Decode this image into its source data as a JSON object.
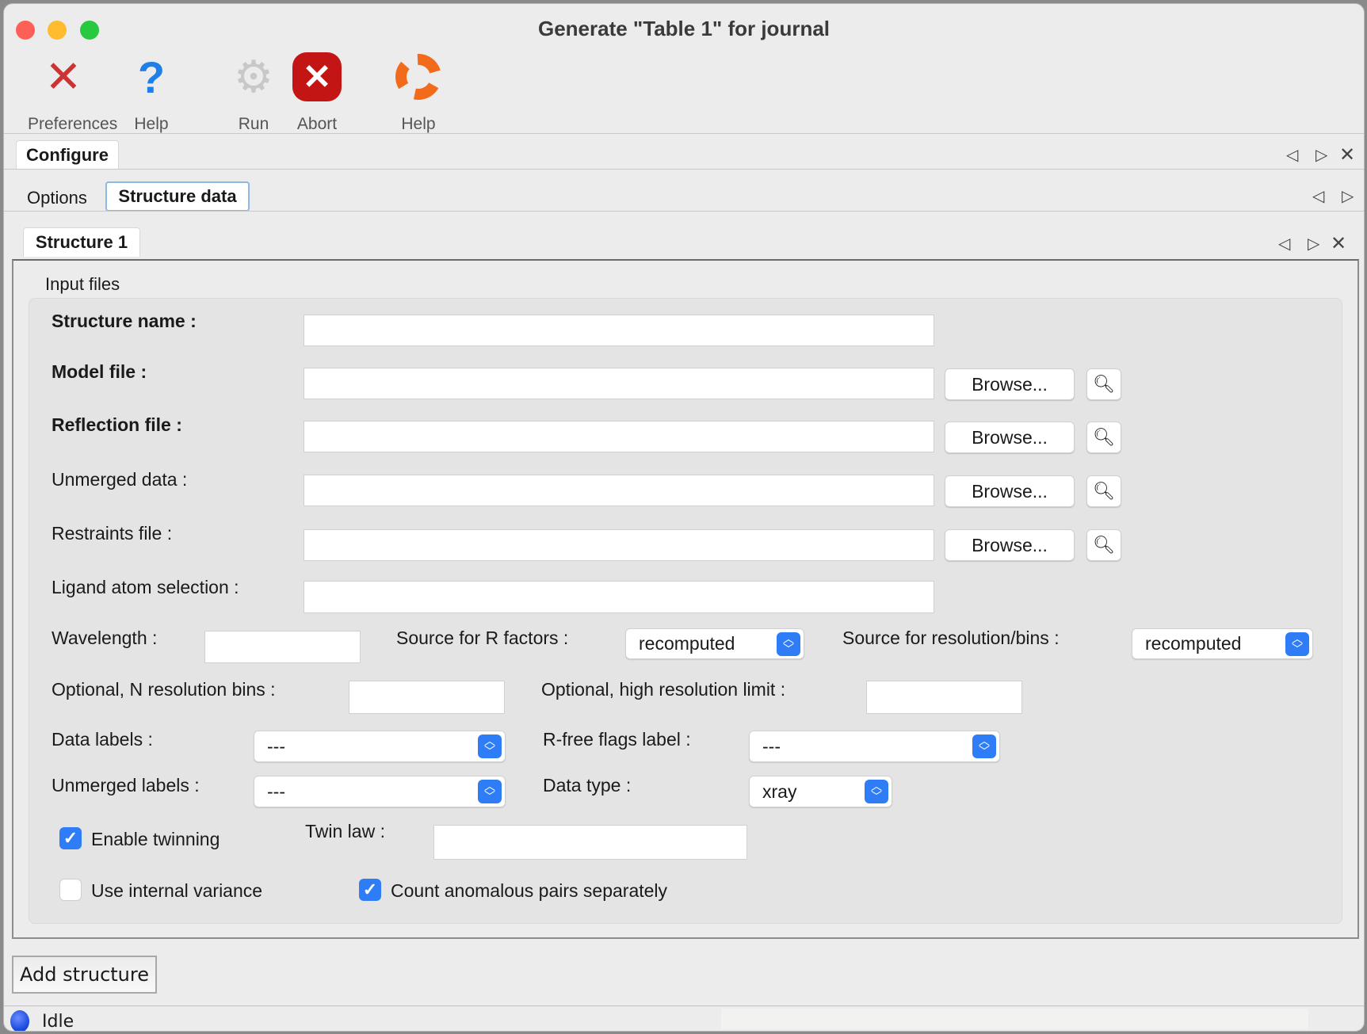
{
  "window": {
    "title": "Generate \"Table 1\" for journal"
  },
  "toolbar": [
    {
      "label": "Preferences",
      "icon": "tools-icon"
    },
    {
      "label": "Help",
      "icon": "question-icon"
    },
    {
      "label": "Run",
      "icon": "gear-icon"
    },
    {
      "label": "Abort",
      "icon": "stop-icon"
    },
    {
      "label": "Help",
      "icon": "lifebuoy-icon"
    }
  ],
  "tabs": {
    "top": "Configure",
    "sub": [
      "Options",
      "Structure data"
    ],
    "structure": "Structure 1"
  },
  "form": {
    "group_title": "Input files",
    "structure_name": {
      "label": "Structure name :",
      "value": ""
    },
    "model_file": {
      "label": "Model file :",
      "value": ""
    },
    "reflection_file": {
      "label": "Reflection file :",
      "value": ""
    },
    "unmerged_data": {
      "label": "Unmerged data :",
      "value": ""
    },
    "restraints_file": {
      "label": "Restraints file :",
      "value": ""
    },
    "ligand_selection": {
      "label": "Ligand atom selection :",
      "value": ""
    },
    "browse_label": "Browse...",
    "wavelength": {
      "label": "Wavelength :",
      "value": ""
    },
    "source_r": {
      "label": "Source for R factors :",
      "value": "recomputed"
    },
    "source_res": {
      "label": "Source for resolution/bins :",
      "value": "recomputed"
    },
    "n_bins": {
      "label": "Optional, N resolution bins :",
      "value": ""
    },
    "high_res": {
      "label": "Optional, high resolution limit :",
      "value": ""
    },
    "data_labels": {
      "label": "Data labels :",
      "value": "---"
    },
    "rfree_label": {
      "label": "R-free flags label :",
      "value": "---"
    },
    "unmerged_labels": {
      "label": "Unmerged labels :",
      "value": "---"
    },
    "data_type": {
      "label": "Data type :",
      "value": "xray"
    },
    "enable_twinning": {
      "label": "Enable twinning",
      "checked": true
    },
    "twin_law": {
      "label": "Twin law :",
      "value": ""
    },
    "internal_variance": {
      "label": "Use internal variance",
      "checked": false
    },
    "anomalous": {
      "label": "Count anomalous pairs separately",
      "checked": true
    }
  },
  "add_structure": "Add structure",
  "status": {
    "text": "Idle",
    "color": "#1f4fe0"
  },
  "colors": {
    "accent": "#2f7df6"
  }
}
